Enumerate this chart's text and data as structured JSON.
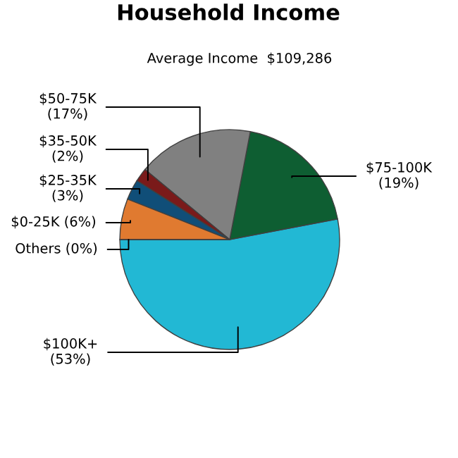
{
  "chart_data": {
    "type": "pie",
    "title": "Household Income",
    "subtitle": "Average Income  $109,286",
    "categories": [
      "$100K+",
      "$75-100K",
      "$50-75K",
      "$35-50K",
      "$25-35K",
      "$0-25K",
      "Others"
    ],
    "values": [
      53,
      19,
      17,
      2,
      3,
      6,
      0
    ],
    "colors": [
      "#22b8d4",
      "#0e5e32",
      "#808080",
      "#7a1a1a",
      "#104e78",
      "#e07a30",
      "#b0b0b0"
    ],
    "value_labels": [
      "(53%)",
      "(19%)",
      "(17%)",
      "(2%)",
      "(3%)",
      "(6%)",
      "(0%)"
    ]
  }
}
